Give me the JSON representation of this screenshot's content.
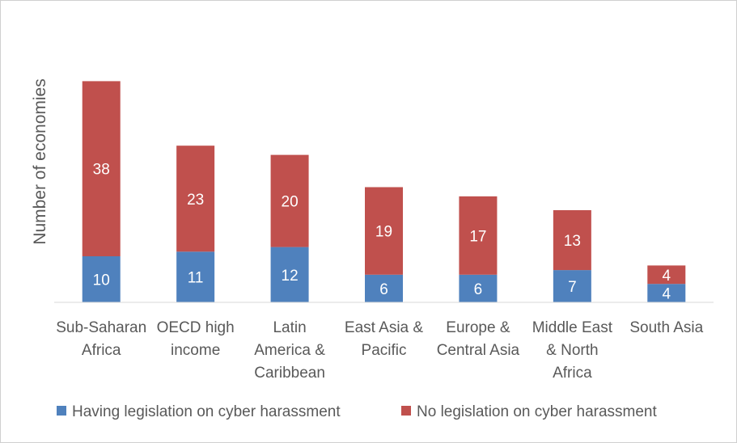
{
  "chart_data": {
    "type": "bar",
    "stacked": true,
    "ylabel": "Number of economies",
    "categories": [
      [
        "Sub-Saharan",
        "Africa"
      ],
      [
        "OECD high",
        "income"
      ],
      [
        "Latin",
        "America &",
        "Caribbean"
      ],
      [
        "East Asia &",
        "Pacific"
      ],
      [
        "Europe &",
        "Central Asia"
      ],
      [
        "Middle East",
        "& North",
        "Africa"
      ],
      [
        "South Asia"
      ]
    ],
    "series": [
      {
        "name": "Having legislation on cyber harassment",
        "color": "#4f81bd",
        "values": [
          10,
          11,
          12,
          6,
          6,
          7,
          4
        ]
      },
      {
        "name": "No legislation on cyber harassment",
        "color": "#c0504d",
        "values": [
          38,
          23,
          20,
          19,
          17,
          13,
          4
        ]
      }
    ],
    "ylim": [
      0,
      48
    ],
    "grid": false,
    "legend": "bottom"
  }
}
